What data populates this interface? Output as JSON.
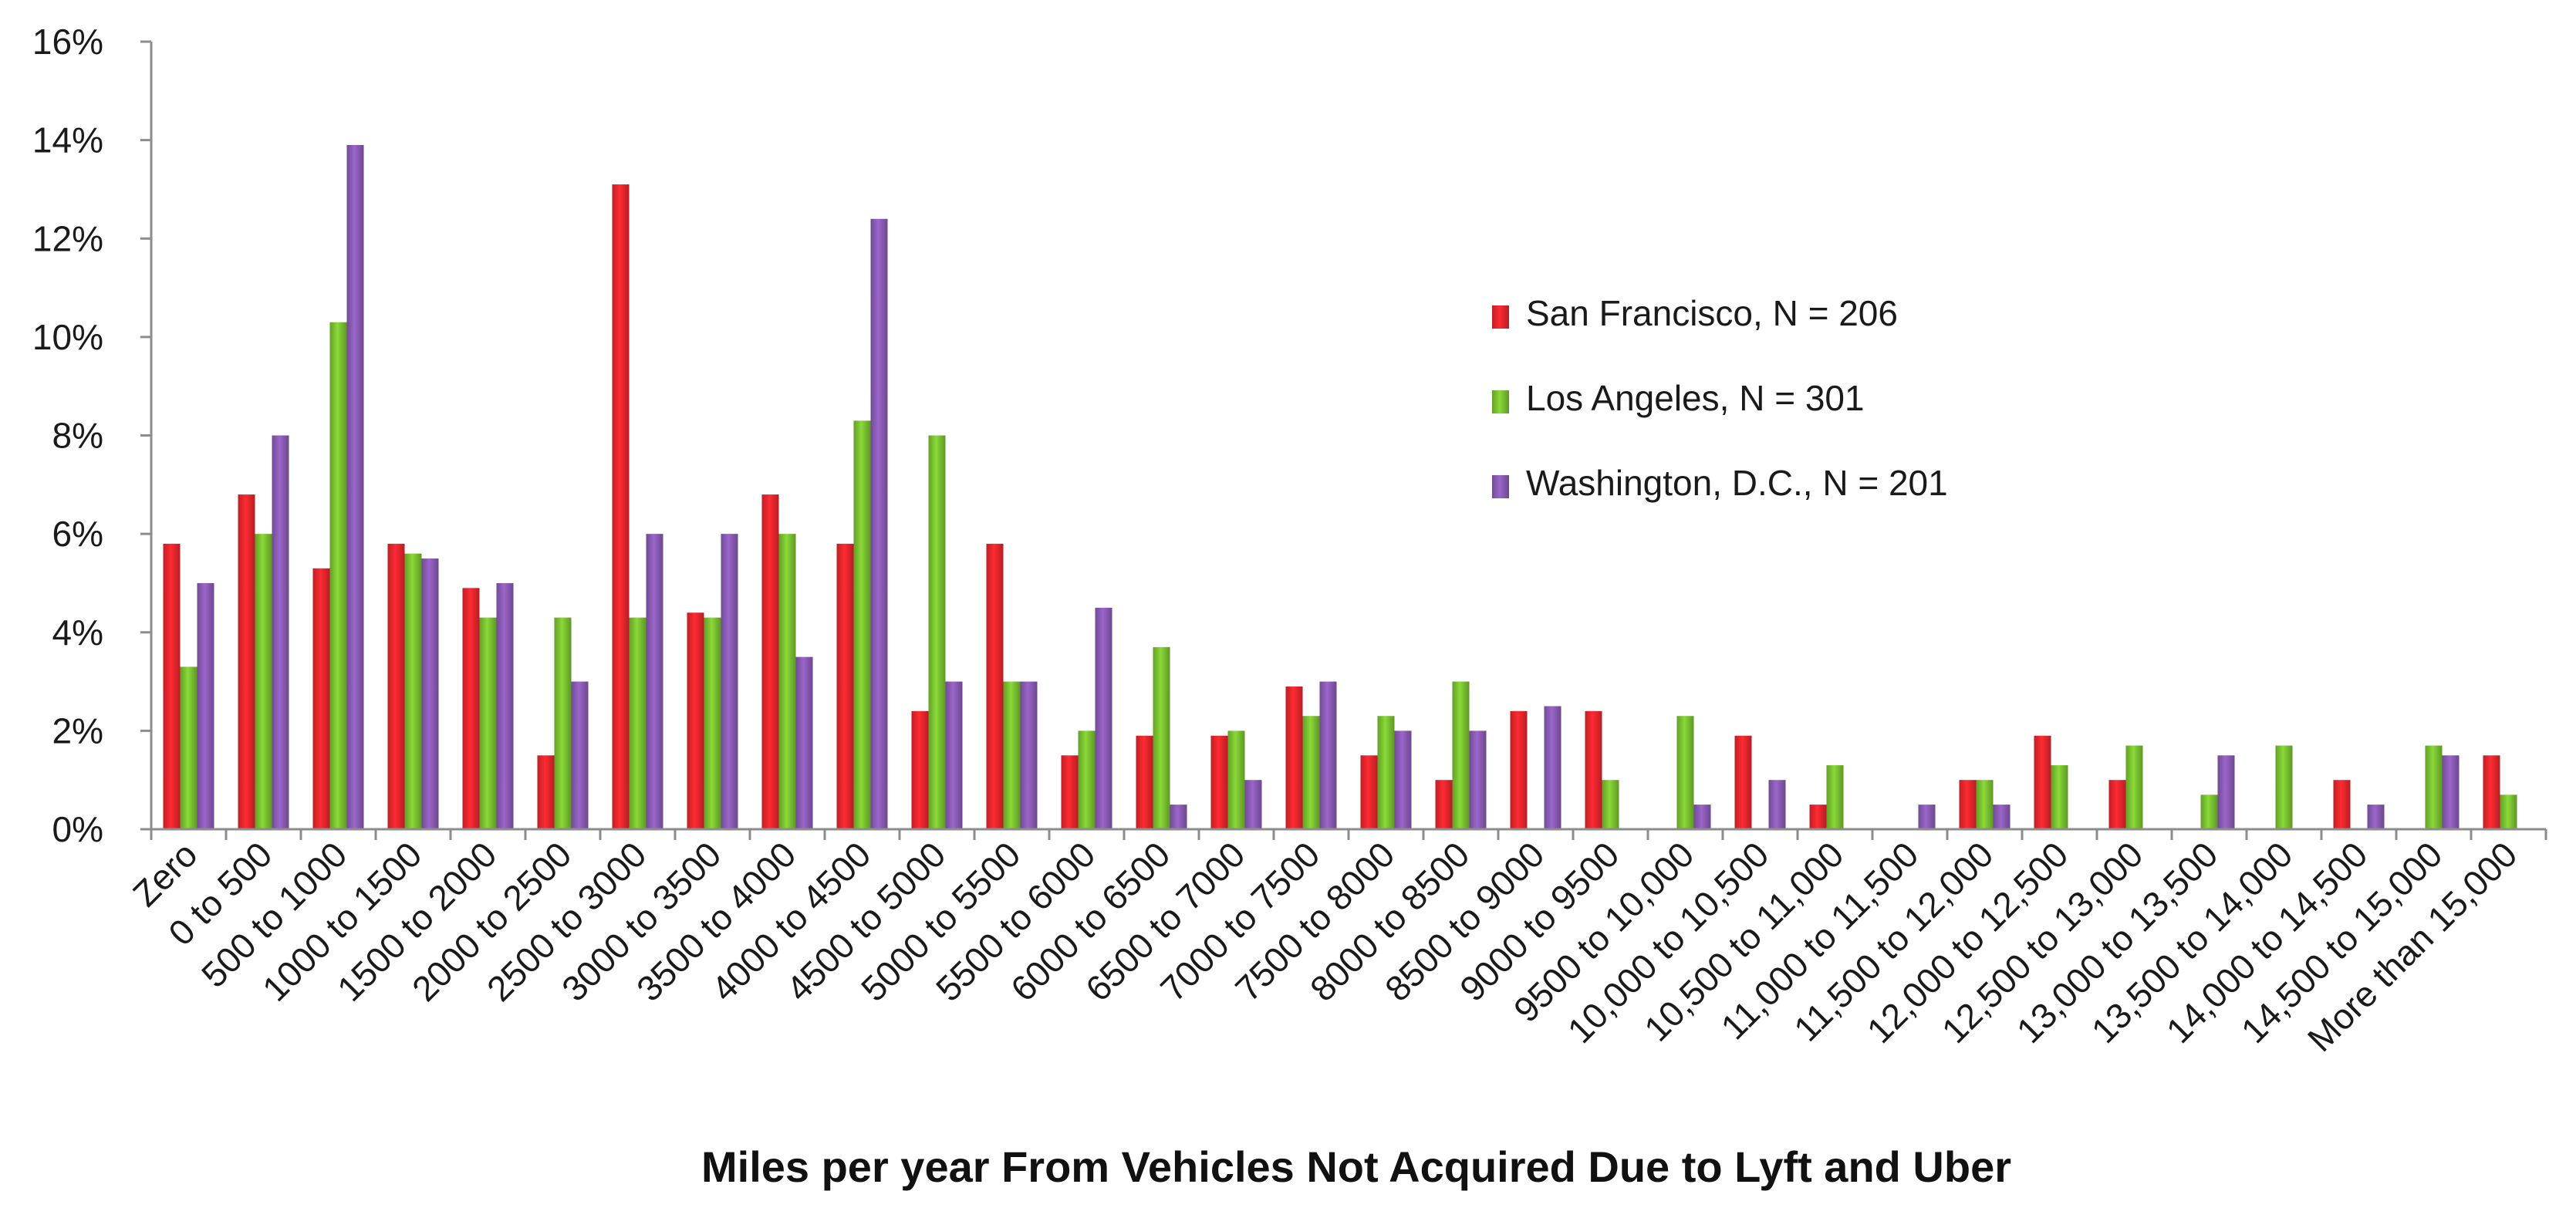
{
  "chart_data": {
    "type": "bar",
    "title": "",
    "xlabel": "Miles per year From Vehicles Not Acquired Due to Lyft and Uber",
    "ylabel": "",
    "ylim": [
      0,
      16
    ],
    "yticks": [
      "0%",
      "2%",
      "4%",
      "6%",
      "8%",
      "10%",
      "12%",
      "14%",
      "16%"
    ],
    "grid": false,
    "legend_position": "right",
    "categories": [
      "Zero",
      "0 to 500",
      "500 to 1000",
      "1000 to 1500",
      "1500 to 2000",
      "2000 to 2500",
      "2500 to 3000",
      "3000 to 3500",
      "3500 to 4000",
      "4000 to 4500",
      "4500 to 5000",
      "5000 to 5500",
      "5500 to 6000",
      "6000 to 6500",
      "6500 to 7000",
      "7000 to 7500",
      "7500 to 8000",
      "8000 to 8500",
      "8500 to 9000",
      "9000 to 9500",
      "9500 to 10,000",
      "10,000 to 10,500",
      "10,500 to 11,000",
      "11,000 to 11,500",
      "11,500 to 12,000",
      "12,000 to 12,500",
      "12,500 to 13,000",
      "13,000 to 13,500",
      "13,500 to 14,000",
      "14,000 to 14,500",
      "14,500 to 15,000",
      "More than 15,000"
    ],
    "series": [
      {
        "name": "San Francisco, N = 206",
        "color": "#e8262d",
        "values": [
          5.8,
          6.8,
          5.3,
          5.8,
          4.9,
          1.5,
          13.1,
          4.4,
          6.8,
          5.8,
          2.4,
          5.8,
          1.5,
          1.9,
          1.9,
          2.9,
          1.5,
          1.0,
          2.4,
          2.4,
          0,
          1.9,
          0.5,
          0,
          1.0,
          1.9,
          1.0,
          0,
          0,
          1.0,
          0,
          1.5
        ]
      },
      {
        "name": "Los Angeles, N = 301",
        "color": "#7ac231",
        "values": [
          3.3,
          6.0,
          10.3,
          5.6,
          4.3,
          4.3,
          4.3,
          4.3,
          6.0,
          8.3,
          8.0,
          3.0,
          2.0,
          3.7,
          2.0,
          2.3,
          2.3,
          3.0,
          0,
          1.0,
          2.3,
          0,
          1.3,
          0,
          1.0,
          1.3,
          1.7,
          0.7,
          1.7,
          0,
          1.7,
          0.7
        ]
      },
      {
        "name": "Washington, D.C., N = 201",
        "color": "#8a5bb5",
        "values": [
          5.0,
          8.0,
          13.9,
          5.5,
          5.0,
          3.0,
          6.0,
          6.0,
          3.5,
          12.4,
          3.0,
          3.0,
          4.5,
          0.5,
          1.0,
          3.0,
          2.0,
          2.0,
          2.5,
          0,
          0.5,
          1.0,
          0,
          0.5,
          0.5,
          0,
          0,
          1.5,
          0,
          0.5,
          1.5,
          0
        ]
      }
    ]
  }
}
